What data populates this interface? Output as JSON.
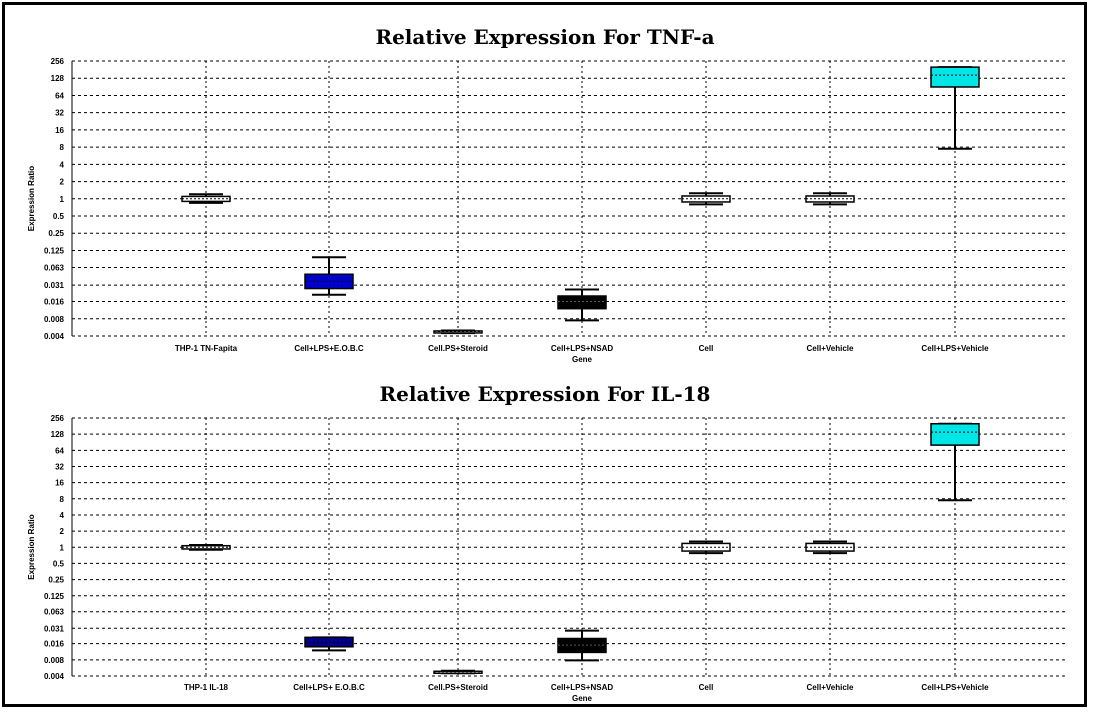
{
  "chart_data": [
    {
      "type": "box",
      "title": "Relative Expression For TNF-a",
      "xlabel": "Gene",
      "ylabel": "Expression Ratio",
      "y_scale": "log2",
      "ylim": [
        0.004,
        256
      ],
      "yticks": [
        "256",
        "128",
        "64",
        "32",
        "16",
        "8",
        "4",
        "2",
        "1",
        "0.5",
        "0.25",
        "0.125",
        "0.063",
        "0.031",
        "0.016",
        "0.008",
        "0.004"
      ],
      "grid": true,
      "categories": [
        "THP-1 TN-Fapita",
        "Cell+LPS+E.O.B.C",
        "Cell.PS+Steroid",
        "Cell+LPS+NSAD",
        "Cell",
        "Cell+Vehicle",
        "Cell+LPS+Vehicle"
      ],
      "boxes": [
        {
          "color": "#ffffff",
          "whisker_low": 0.85,
          "q1": 0.9,
          "median": 1.0,
          "q3": 1.1,
          "whisker_high": 1.2
        },
        {
          "color": "#0000cd",
          "whisker_low": 0.021,
          "q1": 0.027,
          "median": 0.036,
          "q3": 0.048,
          "whisker_high": 0.095
        },
        {
          "color": "#ffffff",
          "whisker_low": 0.0045,
          "q1": 0.0047,
          "median": 0.0048,
          "q3": 0.0049,
          "whisker_high": 0.005
        },
        {
          "color": "#000000",
          "whisker_low": 0.0075,
          "q1": 0.012,
          "median": 0.016,
          "q3": 0.02,
          "whisker_high": 0.026
        },
        {
          "color": "#ffffff",
          "whisker_low": 0.8,
          "q1": 0.88,
          "median": 1.0,
          "q3": 1.12,
          "whisker_high": 1.25
        },
        {
          "color": "#ffffff",
          "whisker_low": 0.8,
          "q1": 0.88,
          "median": 1.0,
          "q3": 1.12,
          "whisker_high": 1.25
        },
        {
          "color": "#00e5e5",
          "whisker_low": 7.5,
          "q1": 90,
          "median": 145,
          "q3": 200,
          "whisker_high": 200
        }
      ]
    },
    {
      "type": "box",
      "title": "Relative Expression For IL-18",
      "xlabel": "Gene",
      "ylabel": "Expression Ratio",
      "y_scale": "log2",
      "ylim": [
        0.004,
        256
      ],
      "yticks": [
        "256",
        "128",
        "64",
        "32",
        "16",
        "8",
        "4",
        "2",
        "1",
        "0.5",
        "0.25",
        "0.125",
        "0.063",
        "0.031",
        "0.016",
        "0.008",
        "0.004"
      ],
      "grid": true,
      "categories": [
        "THP-1 IL-18",
        "Cell+LPS+ E.O.B.C",
        "Cell.PS+Steroid",
        "Cell+LPS+NSAD",
        "Cell",
        "Cell+Vehicle",
        "Cell+LPS+Vehicle"
      ],
      "boxes": [
        {
          "color": "#ffffff",
          "whisker_low": 0.9,
          "q1": 0.93,
          "median": 1.0,
          "q3": 1.07,
          "whisker_high": 1.1
        },
        {
          "color": "#00008b",
          "whisker_low": 0.012,
          "q1": 0.014,
          "median": 0.017,
          "q3": 0.021,
          "whisker_high": 0.021
        },
        {
          "color": "#ffffff",
          "whisker_low": 0.0045,
          "q1": 0.0047,
          "median": 0.0048,
          "q3": 0.0049,
          "whisker_high": 0.005
        },
        {
          "color": "#000000",
          "whisker_low": 0.0078,
          "q1": 0.011,
          "median": 0.015,
          "q3": 0.02,
          "whisker_high": 0.028
        },
        {
          "color": "#ffffff",
          "whisker_low": 0.78,
          "q1": 0.85,
          "median": 1.0,
          "q3": 1.18,
          "whisker_high": 1.28
        },
        {
          "color": "#ffffff",
          "whisker_low": 0.78,
          "q1": 0.85,
          "median": 1.0,
          "q3": 1.18,
          "whisker_high": 1.28
        },
        {
          "color": "#00e5e5",
          "whisker_low": 7.5,
          "q1": 80,
          "median": 140,
          "q3": 200,
          "whisker_high": 200
        }
      ]
    }
  ]
}
